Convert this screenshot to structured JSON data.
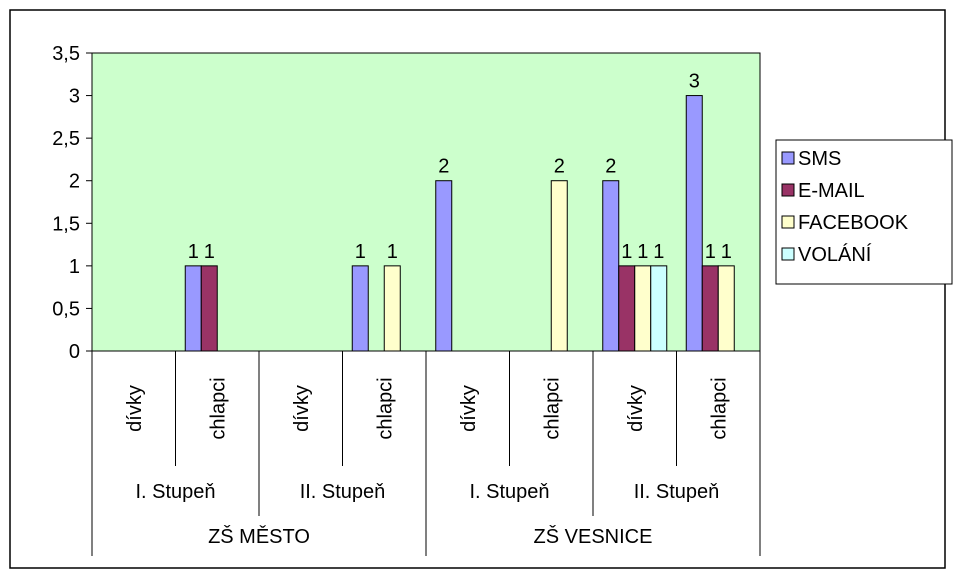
{
  "chart_data": {
    "type": "bar",
    "categories": [
      {
        "sub": "dívky",
        "level": "I. Stupeň",
        "school": "ZŠ MĚSTO"
      },
      {
        "sub": "chlapci",
        "level": "I. Stupeň",
        "school": "ZŠ MĚSTO"
      },
      {
        "sub": "dívky",
        "level": "II. Stupeň",
        "school": "ZŠ MĚSTO"
      },
      {
        "sub": "chlapci",
        "level": "II. Stupeň",
        "school": "ZŠ MĚSTO"
      },
      {
        "sub": "dívky",
        "level": "I. Stupeň",
        "school": "ZŠ VESNICE"
      },
      {
        "sub": "chlapci",
        "level": "I. Stupeň",
        "school": "ZŠ VESNICE"
      },
      {
        "sub": "dívky",
        "level": "II. Stupeň",
        "school": "ZŠ VESNICE"
      },
      {
        "sub": "chlapci",
        "level": "II. Stupeň",
        "school": "ZŠ VESNICE"
      }
    ],
    "level_groups": [
      {
        "label": "I. Stupeň"
      },
      {
        "label": "II. Stupeň"
      },
      {
        "label": "I. Stupeň"
      },
      {
        "label": "II. Stupeň"
      }
    ],
    "school_groups": [
      {
        "label": "ZŠ MĚSTO"
      },
      {
        "label": "ZŠ VESNICE"
      }
    ],
    "series": [
      {
        "name": "SMS",
        "color": "#9999ff",
        "values": [
          null,
          1,
          null,
          1,
          2,
          null,
          2,
          3
        ]
      },
      {
        "name": "E-MAIL",
        "color": "#993366",
        "values": [
          null,
          1,
          null,
          null,
          null,
          null,
          1,
          1
        ]
      },
      {
        "name": "FACEBOOK",
        "color": "#ffffcc",
        "values": [
          null,
          null,
          null,
          1,
          null,
          2,
          1,
          1
        ]
      },
      {
        "name": "VOLÁNÍ",
        "color": "#ccffff",
        "values": [
          null,
          null,
          null,
          null,
          null,
          null,
          1,
          null
        ]
      }
    ],
    "yticks": [
      "0",
      "0,5",
      "1",
      "1,5",
      "2",
      "2,5",
      "3",
      "3,5"
    ],
    "ylim": [
      0,
      3.5
    ],
    "plot_background": "#ccffcc",
    "legend_position": "right",
    "grid": false
  }
}
